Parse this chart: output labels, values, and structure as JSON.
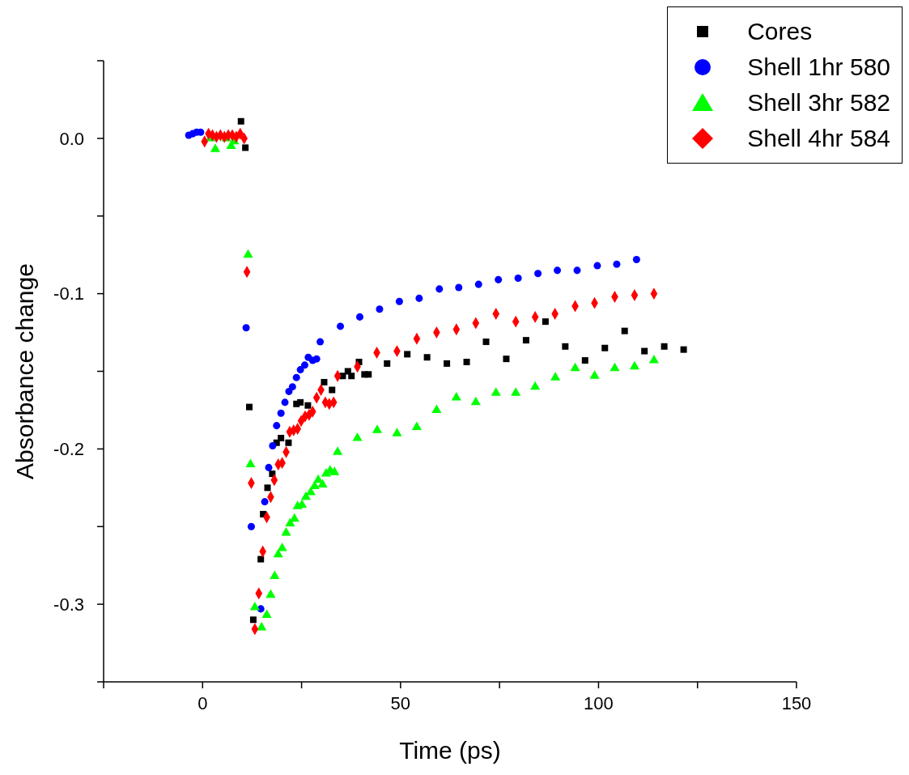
{
  "chart_data": {
    "type": "scatter",
    "xlabel": "Time (ps)",
    "ylabel": "Absorbance change",
    "xlim": [
      -25,
      150
    ],
    "xticks": [
      {
        "value": -25,
        "label": null
      },
      0,
      {
        "value": 25,
        "label": null
      },
      50,
      {
        "value": 75,
        "label": null
      },
      100,
      {
        "value": 125,
        "label": null
      },
      150
    ],
    "ylim": [
      -0.35,
      0.05
    ],
    "yticks": [
      {
        "value": -0.35,
        "label": null
      },
      -0.3,
      {
        "value": -0.25,
        "label": null
      },
      -0.2,
      {
        "value": -0.15,
        "label": null
      },
      -0.1,
      {
        "value": -0.05,
        "label": null
      },
      {
        "value": 0,
        "label": "0.0"
      },
      {
        "value": 0.05,
        "label": null
      }
    ],
    "grid": false,
    "legend": "top right",
    "series": [
      {
        "name": "Cores",
        "color": "#000000",
        "marker": "square",
        "x": [
          9.7,
          10.8,
          11.8,
          12.8,
          14.7,
          15.3,
          16.4,
          17.6,
          18.7,
          19.8,
          21.7,
          23.7,
          24.7,
          26.6,
          30.7,
          32.7,
          35.4,
          36.7,
          37.6,
          39.5,
          40.9,
          41.9,
          46.6,
          51.7,
          56.7,
          61.7,
          66.7,
          71.6,
          76.7,
          81.7,
          86.6,
          91.6,
          96.6,
          101.6,
          106.6,
          111.6,
          116.6,
          121.5
        ],
        "values": [
          0.011,
          -0.006,
          -0.173,
          -0.31,
          -0.271,
          -0.242,
          -0.225,
          -0.216,
          -0.196,
          -0.193,
          -0.196,
          -0.171,
          -0.17,
          -0.172,
          -0.157,
          -0.162,
          -0.153,
          -0.15,
          -0.153,
          -0.144,
          -0.152,
          -0.152,
          -0.145,
          -0.139,
          -0.141,
          -0.145,
          -0.144,
          -0.131,
          -0.142,
          -0.13,
          -0.118,
          -0.134,
          -0.143,
          -0.135,
          -0.124,
          -0.137,
          -0.134,
          -0.136
        ]
      },
      {
        "name": "Shell 1hr 580",
        "color": "#0000ff",
        "marker": "circle",
        "x": [
          -3.5,
          -2.5,
          -1.5,
          -0.5,
          11.0,
          12.3,
          14.7,
          15.7,
          16.7,
          17.7,
          18.7,
          19.8,
          20.8,
          21.8,
          22.7,
          23.7,
          24.7,
          25.8,
          26.7,
          27.8,
          28.8,
          29.7,
          34.8,
          39.7,
          44.7,
          49.7,
          54.7,
          59.8,
          64.7,
          69.7,
          74.7,
          79.7,
          84.7,
          89.6,
          94.6,
          99.7,
          104.6,
          109.6
        ],
        "values": [
          0.002,
          0.003,
          0.004,
          0.004,
          -0.122,
          -0.25,
          -0.303,
          -0.234,
          -0.212,
          -0.198,
          -0.185,
          -0.177,
          -0.17,
          -0.163,
          -0.16,
          -0.154,
          -0.149,
          -0.146,
          -0.141,
          -0.143,
          -0.142,
          -0.131,
          -0.121,
          -0.115,
          -0.11,
          -0.105,
          -0.103,
          -0.097,
          -0.096,
          -0.094,
          -0.091,
          -0.09,
          -0.087,
          -0.085,
          -0.085,
          -0.082,
          -0.081,
          -0.078
        ]
      },
      {
        "name": "Shell 3hr 582",
        "color": "#00ff00",
        "marker": "triangle",
        "x": [
          2,
          3.2,
          6,
          7.2,
          8,
          11.5,
          12.1,
          13.2,
          14.9,
          16.2,
          17.2,
          18.2,
          19.1,
          20.1,
          21.1,
          22.1,
          23.2,
          24.0,
          25.1,
          26.1,
          27.3,
          28.3,
          29.2,
          30.3,
          31.2,
          32.2,
          33.3,
          34.1,
          39.1,
          44.1,
          49.1,
          54.1,
          59.1,
          64.1,
          69.0,
          74.1,
          79.1,
          84.0,
          89.1,
          94.1,
          99.0,
          104.1,
          109.1,
          114.0
        ],
        "values": [
          0.0,
          -0.007,
          0.0,
          -0.005,
          -0.002,
          -0.075,
          -0.21,
          -0.302,
          -0.315,
          -0.307,
          -0.294,
          -0.282,
          -0.268,
          -0.264,
          -0.254,
          -0.248,
          -0.245,
          -0.237,
          -0.236,
          -0.231,
          -0.228,
          -0.224,
          -0.22,
          -0.223,
          -0.216,
          -0.214,
          -0.215,
          -0.202,
          -0.193,
          -0.188,
          -0.19,
          -0.186,
          -0.175,
          -0.167,
          -0.17,
          -0.164,
          -0.164,
          -0.16,
          -0.154,
          -0.148,
          -0.153,
          -0.148,
          -0.147,
          -0.143
        ]
      },
      {
        "name": "Shell 4hr 584",
        "color": "#ff0000",
        "marker": "diamond",
        "x": [
          0.5,
          1.5,
          2.5,
          3.5,
          4.5,
          5.5,
          6.5,
          7.5,
          8.5,
          9.5,
          10.5,
          11.2,
          12.3,
          13.2,
          14.2,
          15.2,
          16.2,
          17.2,
          18.1,
          19.1,
          20.1,
          21.1,
          22.0,
          23.0,
          24.0,
          24.9,
          25.9,
          26.9,
          27.8,
          28.8,
          29.9,
          31.0,
          32.0,
          33.1,
          34.1,
          39.1,
          44.0,
          49.1,
          54.1,
          59.1,
          64.1,
          69.0,
          74.1,
          79.1,
          84.0,
          89.0,
          94.1,
          99.0,
          104.1,
          109.1,
          114.0
        ],
        "values": [
          -0.002,
          0.003,
          0.002,
          0.001,
          0.002,
          0.001,
          0.002,
          0.002,
          0.001,
          0.003,
          0.0,
          -0.086,
          -0.222,
          -0.316,
          -0.293,
          -0.266,
          -0.244,
          -0.231,
          -0.22,
          -0.21,
          -0.209,
          -0.202,
          -0.189,
          -0.188,
          -0.187,
          -0.182,
          -0.179,
          -0.178,
          -0.176,
          -0.167,
          -0.162,
          -0.17,
          -0.171,
          -0.17,
          -0.153,
          -0.147,
          -0.138,
          -0.137,
          -0.129,
          -0.125,
          -0.123,
          -0.119,
          -0.113,
          -0.118,
          -0.115,
          -0.113,
          -0.108,
          -0.106,
          -0.102,
          -0.101,
          -0.1
        ]
      }
    ]
  }
}
